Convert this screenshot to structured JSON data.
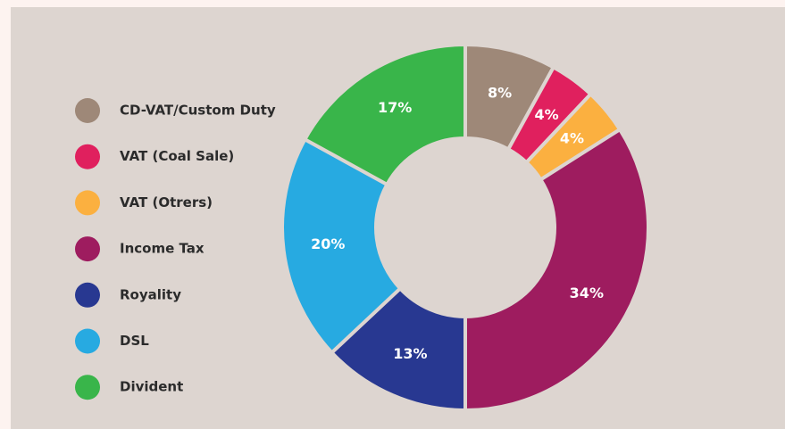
{
  "chart_data": {
    "type": "pie",
    "categories": [
      "CD-VAT/Custom Duty",
      "VAT (Coal Sale)",
      "VAT (Otrers)",
      "Income Tax",
      "Royality",
      "DSL",
      "Divident"
    ],
    "values": [
      8,
      4,
      4,
      34,
      13,
      20,
      17
    ],
    "value_labels": [
      "8%",
      "4%",
      "4%",
      "34%",
      "13%",
      "20%",
      "17%"
    ],
    "colors": [
      "#9e8878",
      "#e0205e",
      "#fbb040",
      "#9e1c5f",
      "#283891",
      "#27aae1",
      "#39b54a"
    ],
    "legend": "left"
  }
}
